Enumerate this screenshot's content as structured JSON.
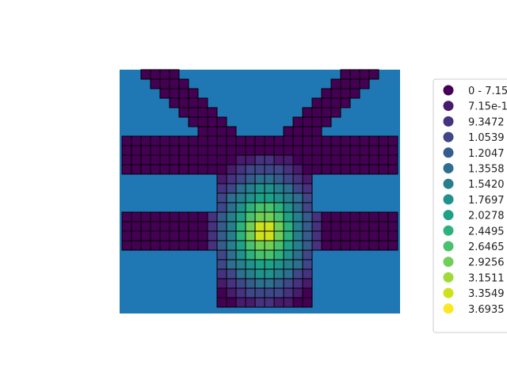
{
  "chart_data": {
    "type": "heatmap",
    "title": "",
    "xlabel": "",
    "ylabel": "",
    "background_color": "#1f77b4",
    "cell_edge_color": "#000000",
    "grid_cols": 29,
    "grid_rows": 25,
    "cells": {
      "description_rows_top_to_bottom": [
        "..00000000000000000000000000.",
        "..000000000000000000000000000",
        "...0000000000000000000000000.",
        "....00000000000000000000000..",
        ".....000000000000000000000...",
        "......0000000000000000000....",
        ".......00000000000000000.....",
        "00000000000000000000000000000",
        "00000000000000000000000000000",
        "00000000000000000000000000000",
        "00000000000000000000000000000",
        ".........00000000000.........",
        "..........000000000..........",
        "..........000000000..........",
        "..........000000000..........",
        "00000000000000000000000000000",
        "00000000000000000000000000000",
        "00000000000000000000000000000",
        "00000000000000000000000000000",
        "..........000000000..........",
        "..........000000000..........",
        "..........000000000..........",
        "..........000000000..........",
        "..........000000000..........",
        "..........000000000.........."
      ]
    },
    "legend": {
      "placement": "right",
      "entries": [
        {
          "label": "0 - 7.15",
          "color": "#440154"
        },
        {
          "label": "7.15e-1",
          "color": "#481b6d"
        },
        {
          "label": "9.3472",
          "color": "#46327e"
        },
        {
          "label": "1.0539",
          "color": "#3f4788"
        },
        {
          "label": "1.2047",
          "color": "#365c8d"
        },
        {
          "label": "1.3558",
          "color": "#2e6e8e"
        },
        {
          "label": "1.5420",
          "color": "#277f8e"
        },
        {
          "label": "1.7697",
          "color": "#21918c"
        },
        {
          "label": "2.0278",
          "color": "#1fa187"
        },
        {
          "label": "2.4495",
          "color": "#2db27d"
        },
        {
          "label": "2.6465",
          "color": "#4ac16d"
        },
        {
          "label": "2.9256",
          "color": "#71cf57"
        },
        {
          "label": "3.1511",
          "color": "#a0da39"
        },
        {
          "label": "3.3549",
          "color": "#d0e11c"
        },
        {
          "label": "3.6935",
          "color": "#fde725"
        }
      ]
    }
  }
}
